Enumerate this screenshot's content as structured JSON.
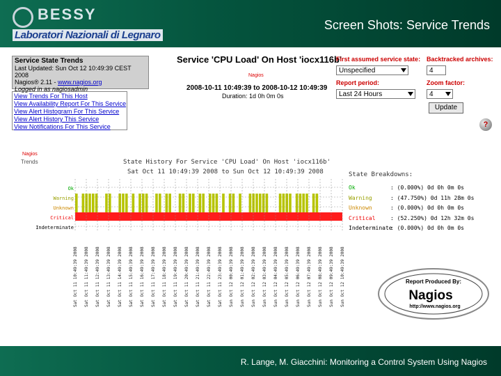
{
  "header": {
    "logo_text": "BESSY",
    "logo_sub": "Laboratori Nazionali di Legnaro",
    "title": "Screen Shots: Service Trends"
  },
  "footer": {
    "text": "R. Lange, M. Giacchini: Monitoring a Control System Using Nagios"
  },
  "state_box": {
    "title": "Service State Trends",
    "updated": "Last Updated: Sun Oct 12 10:49:39 CEST 2008",
    "version_prefix": "Nagios® 2.11 - ",
    "version_link": "www.nagios.org",
    "logged": "Logged in as nagiosadmin"
  },
  "links": [
    "View Trends For This Host",
    "View Availability Report For This Service",
    "View Alert Histogram For This Service",
    "View Alert History This Service",
    "View Notifications For This Service"
  ],
  "service": {
    "title": "Service 'CPU Load' On Host 'iocx116b'",
    "date_range": "2008-10-11 10:49:39 to 2008-10-12 10:49:39",
    "duration": "Duration: 1d 0h 0m 0s"
  },
  "form": {
    "first_state_label": "First assumed service state:",
    "first_state_value": "Unspecified",
    "backtracked_label": "Backtracked archives:",
    "backtracked_value": "4",
    "period_label": "Report period:",
    "period_value": "Last 24 Hours",
    "zoom_label": "Zoom factor:",
    "zoom_value": "4",
    "update_label": "Update",
    "help_label": "?"
  },
  "chart_data": {
    "type": "timeline",
    "title": "State History For Service 'CPU Load' On Host 'iocx116b'",
    "subtitle": "Sat Oct 11 10:49:39 2008 to Sun Oct 12 10:49:39 2008",
    "trends_label": "Trends",
    "states": [
      "Ok",
      "Warning",
      "Unknown",
      "Critical",
      "Indeterminate"
    ],
    "colors": {
      "ok": "#00cc00",
      "warning": "#b7c400",
      "unknown": "#ee9900",
      "critical": "#ff1c1c",
      "grid": "#888888"
    },
    "warning_fraction": 0.48,
    "critical_fraction": 0.52,
    "x_tick_labels": [
      "Sat Oct 11 10:49:39 2008",
      "Sat Oct 11 11:49:39 2008",
      "Sat Oct 11 12:49:39 2008",
      "Sat Oct 11 13:49:39 2008",
      "Sat Oct 11 14:49:39 2008",
      "Sat Oct 11 15:49:39 2008",
      "Sat Oct 11 16:49:39 2008",
      "Sat Oct 11 17:49:39 2008",
      "Sat Oct 11 18:49:39 2008",
      "Sat Oct 11 19:49:39 2008",
      "Sat Oct 11 20:49:39 2008",
      "Sat Oct 11 21:49:39 2008",
      "Sat Oct 11 22:49:39 2008",
      "Sat Oct 11 23:49:39 2008",
      "Sun Oct 12 00:49:39 2008",
      "Sun Oct 12 01:49:39 2008",
      "Sun Oct 12 02:49:39 2008",
      "Sun Oct 12 03:49:39 2008",
      "Sun Oct 12 04:49:39 2008",
      "Sun Oct 12 05:49:39 2008",
      "Sun Oct 12 06:49:39 2008",
      "Sun Oct 12 07:49:39 2008",
      "Sun Oct 12 08:49:39 2008",
      "Sun Oct 12 09:49:39 2008",
      "Sun Oct 12 10:49:39 2008"
    ]
  },
  "breakdown": {
    "title": "State Breakdowns:",
    "rows": [
      {
        "state": "Ok",
        "value": ": (0.000%) 0d 0h 0m 0s",
        "color": "#00aa00"
      },
      {
        "state": "Warning",
        "value": ": (47.750%) 0d 11h 28m 0s",
        "color": "#99a000"
      },
      {
        "state": "Unknown",
        "value": ": (0.000%) 0d 0h 0m 0s",
        "color": "#cc8800"
      },
      {
        "state": "Critical",
        "value": ": (52.250%) 0d 12h 32m 0s",
        "color": "#ee0000"
      },
      {
        "state": "Indeterminate",
        "value": ": (0.000%) 0d 0h 0m 0s",
        "color": "#000000"
      }
    ]
  },
  "nagios_badge": {
    "line1": "Report Produced By:",
    "line2": "Nagios",
    "line3": "http://www.nagios.org"
  }
}
